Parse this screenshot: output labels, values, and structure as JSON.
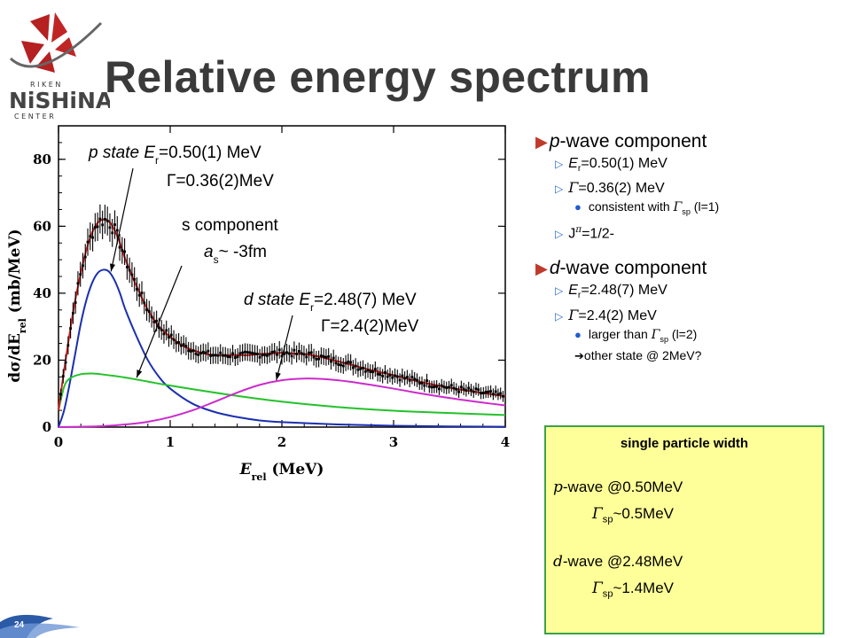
{
  "logo": {
    "letters_top": "R I K E N",
    "wordmark": "NiSHiNA",
    "letters_bottom": "C E N T E R"
  },
  "title": "Relative energy spectrum",
  "colors": {
    "title": "#3a3a3a",
    "total_fit": "#d42020",
    "p_state": "#1a2fb0",
    "s_component": "#22c22a",
    "d_state": "#cc2acc",
    "box_bg": "#ffff99",
    "box_border": "#3aa14a",
    "bullet_triangle": "#c0392b"
  },
  "annotations": {
    "p_state_line1": "p state E",
    "p_state_sub": "r",
    "p_state_val": "=0.50(1) MeV",
    "p_state_line2": "Γ=0.36(2)MeV",
    "s_line1": "s component",
    "s_line2_a": "a",
    "s_line2_sub": "s",
    "s_line2_val": "~ -3fm",
    "d_state_line1": "d state E",
    "d_state_sub": "r",
    "d_state_val": "=2.48(7) MeV",
    "d_state_line2": "Γ=2.4(2)MeV"
  },
  "right_list": {
    "p_head_ital": "p",
    "p_head": "-wave component",
    "p_er_a": "E",
    "p_er_sub": "r",
    "p_er_val": "=0.50(1) MeV",
    "p_gamma_sym": "Γ",
    "p_gamma_val": "=0.36(2) MeV",
    "p_consistent_a": "consistent with ",
    "p_consistent_sym": "Γ",
    "p_consistent_sub": "sp",
    "p_consistent_b": " (l=1)",
    "p_j_a": "J",
    "p_j_sup": "π",
    "p_j_b": "=1/2-",
    "d_head_ital": "d",
    "d_head": "-wave component",
    "d_er_a": "E",
    "d_er_sub": "r",
    "d_er_val": "=2.48(7) MeV",
    "d_gamma_sym": "Γ",
    "d_gamma_val": "=2.4(2) MeV",
    "d_larger_a": "larger than ",
    "d_larger_sym": "Γ",
    "d_larger_sub": "sp",
    "d_larger_b": " (l=2)",
    "d_other": "other state @ 2MeV?"
  },
  "box": {
    "title": "single particle width",
    "p_ital": "p",
    "p_text": "-wave @0.50MeV",
    "p_gamma_sym": "Γ",
    "p_gamma_sub": "sp",
    "p_gamma_val": "~0.5MeV",
    "d_ital": "d",
    "d_text": "-wave @2.48MeV",
    "d_gamma_sym": "Γ",
    "d_gamma_sub": "sp",
    "d_gamma_val": "~1.4MeV"
  },
  "page_number": "24",
  "chart_data": {
    "type": "line",
    "xlabel": "E_rel (MeV)",
    "ylabel": "dσ/dE_rel (mb/MeV)",
    "xlim": [
      0,
      4
    ],
    "ylim": [
      0,
      90
    ],
    "x_ticks": [
      "0",
      "1",
      "2",
      "3",
      "4"
    ],
    "y_ticks": [
      "0",
      "20",
      "40",
      "60",
      "80"
    ],
    "series": [
      {
        "key": "p_state",
        "x": [
          0.0,
          0.05,
          0.1,
          0.15,
          0.2,
          0.25,
          0.3,
          0.35,
          0.4,
          0.45,
          0.5,
          0.55,
          0.6,
          0.7,
          0.8,
          0.9,
          1.0,
          1.2,
          1.4,
          1.6,
          1.8,
          2.0,
          2.5,
          3.0,
          3.5,
          4.0
        ],
        "y": [
          0,
          5,
          13,
          22,
          31,
          38,
          43,
          46,
          47,
          46.5,
          44,
          40,
          35,
          27,
          20,
          15,
          11.5,
          7,
          4.5,
          3,
          2,
          1.5,
          0.8,
          0.4,
          0.2,
          0.1
        ]
      },
      {
        "key": "s_component",
        "x": [
          0.0,
          0.05,
          0.1,
          0.2,
          0.3,
          0.4,
          0.6,
          0.8,
          1.0,
          1.5,
          2.0,
          2.5,
          3.0,
          3.5,
          4.0
        ],
        "y": [
          5,
          12,
          14.5,
          15.8,
          16,
          15.7,
          14.8,
          13.6,
          12.4,
          9.8,
          7.6,
          6.0,
          4.9,
          4.2,
          3.6
        ]
      },
      {
        "key": "d_state",
        "x": [
          0.0,
          0.2,
          0.4,
          0.6,
          0.8,
          1.0,
          1.2,
          1.4,
          1.6,
          1.8,
          2.0,
          2.2,
          2.4,
          2.6,
          2.8,
          3.0,
          3.2,
          3.4,
          3.6,
          3.8,
          4.0
        ],
        "y": [
          0,
          0.1,
          0.3,
          0.8,
          1.6,
          3,
          5,
          7.6,
          10.3,
          12.6,
          14,
          14.5,
          14.3,
          13.6,
          12.6,
          11.5,
          10.3,
          9.2,
          8.2,
          7.3,
          6.5
        ]
      },
      {
        "key": "total_fit",
        "x": [
          0.0,
          0.05,
          0.1,
          0.15,
          0.2,
          0.25,
          0.3,
          0.35,
          0.4,
          0.45,
          0.5,
          0.55,
          0.6,
          0.7,
          0.8,
          0.9,
          1.0,
          1.1,
          1.2,
          1.3,
          1.4,
          1.5,
          1.6,
          1.7,
          1.8,
          1.9,
          2.0,
          2.1,
          2.2,
          2.3,
          2.4,
          2.6,
          2.8,
          3.0,
          3.2,
          3.4,
          3.6,
          3.8,
          4.0
        ],
        "y": [
          5,
          17,
          28,
          38,
          46,
          53,
          58,
          61,
          62,
          61.5,
          59,
          55,
          50,
          42,
          35,
          30,
          27,
          24.5,
          23,
          22,
          21.5,
          21.5,
          21.5,
          21.5,
          21.8,
          22,
          22.2,
          22,
          21.8,
          21.3,
          20.5,
          18.8,
          17,
          15.5,
          13.8,
          12.4,
          11.2,
          10.2,
          9.2
        ]
      }
    ],
    "data_points_description_free": true
  }
}
